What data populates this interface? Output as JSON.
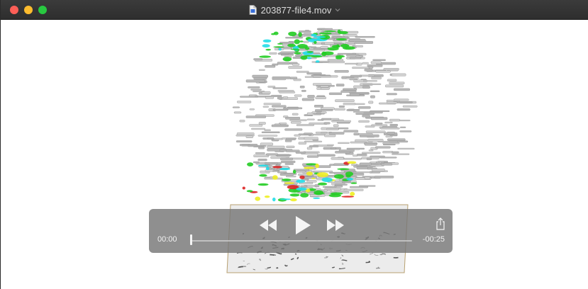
{
  "window": {
    "title": "203877-file4.mov",
    "icons": {
      "document": "document-icon",
      "chevron": "chevron-down-icon"
    }
  },
  "player": {
    "current_time": "00:00",
    "remaining_time": "-00:25",
    "progress": 0.0,
    "buttons": {
      "rewind": "rewind-icon",
      "play": "play-icon",
      "fast_forward": "fast-forward-icon",
      "share": "share-icon"
    }
  },
  "colors": {
    "titlebar": "#2e2e2e",
    "close": "#fe5f57",
    "minimize": "#febc2e",
    "maximize": "#28c840",
    "render_gray": "#b8b8b8",
    "render_green": "#22cc22",
    "render_cyan": "#22dde8",
    "render_red": "#dd2222",
    "render_yellow": "#eeee22"
  }
}
